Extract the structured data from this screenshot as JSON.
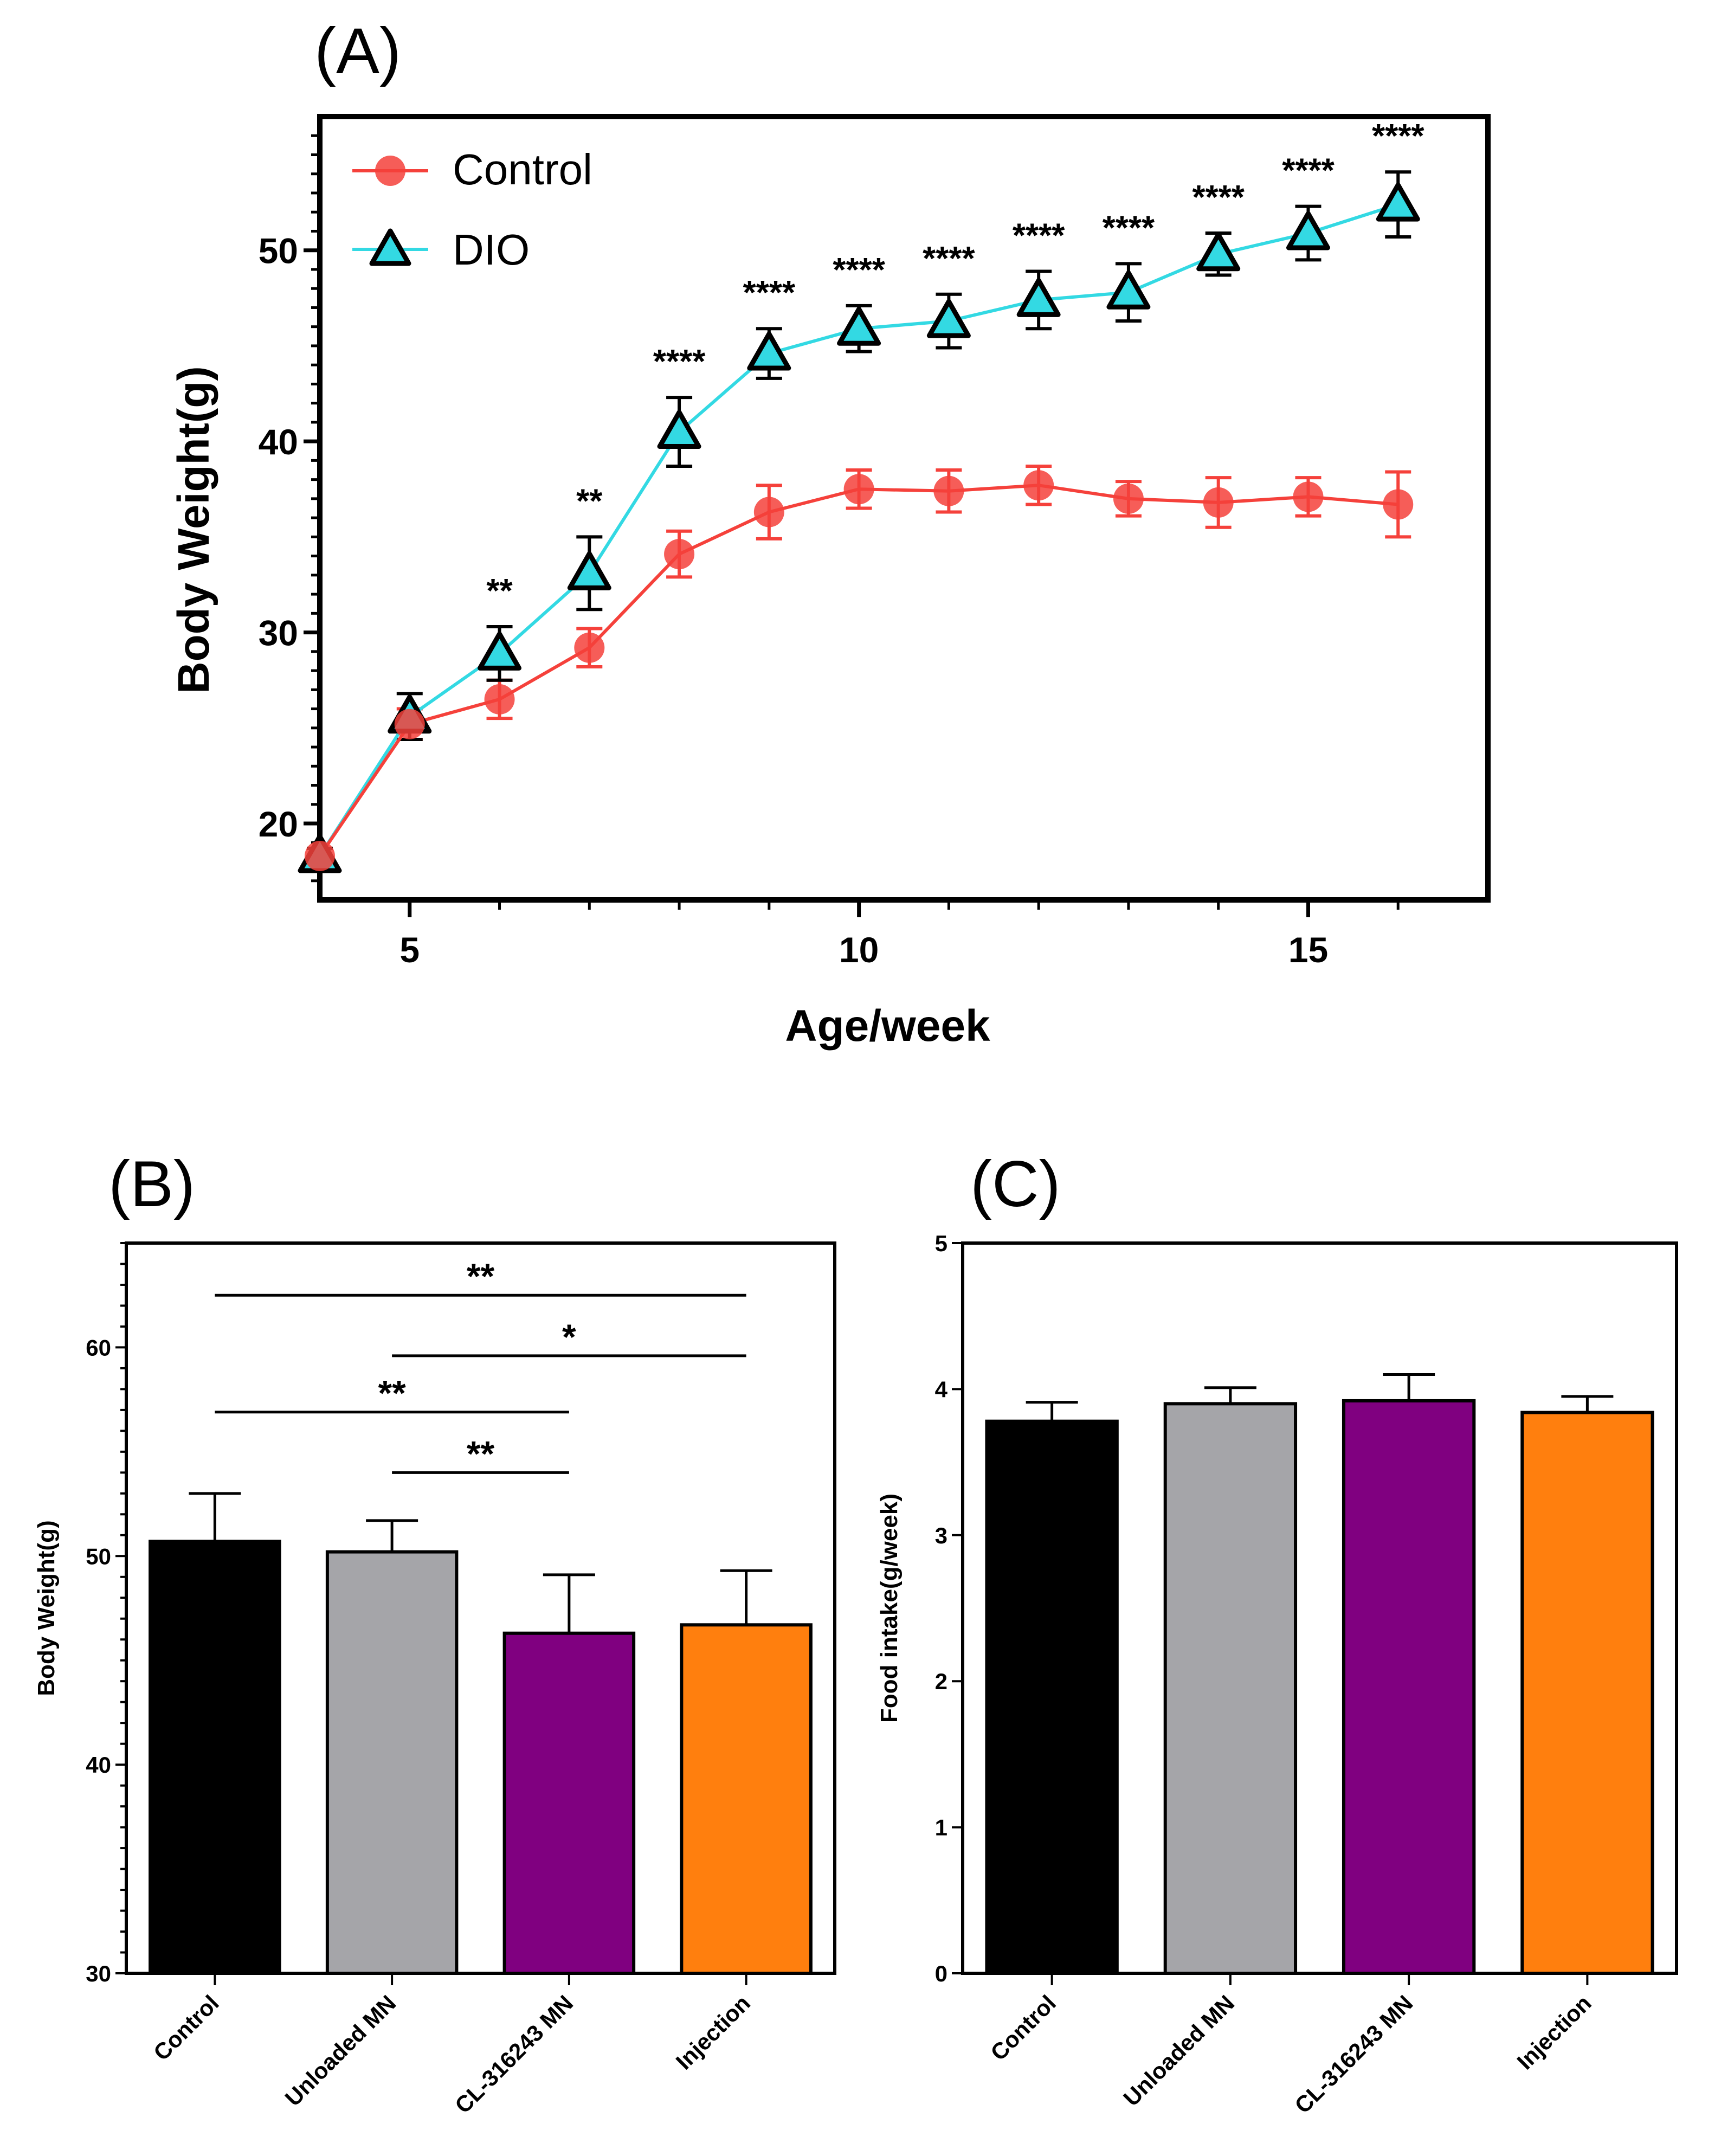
{
  "chart_data": [
    {
      "id": "A",
      "type": "line",
      "panel_label": "(A)",
      "xlabel": "Age/week",
      "ylabel": "Body Weight(g)",
      "xlim": [
        4,
        17
      ],
      "ylim": [
        16,
        57
      ],
      "xticks": [
        5,
        10,
        15
      ],
      "yticks": [
        20,
        30,
        40,
        50
      ],
      "legend_position": "top-left",
      "x": [
        4,
        5,
        6,
        7,
        8,
        9,
        10,
        11,
        12,
        13,
        14,
        15,
        16
      ],
      "series": [
        {
          "name": "Control",
          "color": "#f5413b",
          "marker": "circle",
          "values": [
            18.3,
            25.2,
            26.5,
            29.2,
            34.1,
            36.3,
            37.5,
            37.4,
            37.7,
            37.0,
            36.8,
            37.1,
            36.7
          ],
          "errors": [
            0.4,
            0.8,
            1.0,
            1.0,
            1.2,
            1.4,
            1.0,
            1.1,
            1.0,
            0.9,
            1.3,
            1.0,
            1.7
          ]
        },
        {
          "name": "DIO",
          "color": "#33d9e3",
          "marker": "triangle",
          "values": [
            18.3,
            25.6,
            28.9,
            33.1,
            40.5,
            44.6,
            45.9,
            46.3,
            47.4,
            47.8,
            49.8,
            50.9,
            52.4
          ],
          "errors": [
            0.4,
            1.2,
            1.4,
            1.9,
            1.8,
            1.3,
            1.2,
            1.4,
            1.5,
            1.5,
            1.1,
            1.4,
            1.7
          ]
        }
      ],
      "annotations": [
        {
          "x": 6,
          "text": "**"
        },
        {
          "x": 7,
          "text": "**"
        },
        {
          "x": 8,
          "text": "****"
        },
        {
          "x": 9,
          "text": "****"
        },
        {
          "x": 10,
          "text": "****"
        },
        {
          "x": 11,
          "text": "****"
        },
        {
          "x": 12,
          "text": "****"
        },
        {
          "x": 13,
          "text": "****"
        },
        {
          "x": 14,
          "text": "****"
        },
        {
          "x": 15,
          "text": "****"
        },
        {
          "x": 16,
          "text": "****"
        }
      ]
    },
    {
      "id": "B",
      "type": "bar",
      "panel_label": "(B)",
      "xlabel": "",
      "ylabel": "Body Weight(g)",
      "ylim": [
        30,
        65
      ],
      "yticks": [
        30,
        40,
        50,
        60
      ],
      "categories": [
        "Control",
        "Unloaded MN",
        "CL-316243 MN",
        "Injection"
      ],
      "values": [
        50.7,
        50.2,
        46.3,
        46.7
      ],
      "errors": [
        2.3,
        1.5,
        2.8,
        2.6
      ],
      "colors": [
        "#000000",
        "#a5a5a9",
        "#800080",
        "#ff7f0e"
      ],
      "comparisons": [
        {
          "from": 0,
          "to": 3,
          "y": 62.5,
          "text": "**"
        },
        {
          "from": 1,
          "to": 3,
          "y": 59.6,
          "text": "*"
        },
        {
          "from": 0,
          "to": 2,
          "y": 56.9,
          "text": "**"
        },
        {
          "from": 1,
          "to": 2,
          "y": 54.0,
          "text": "**"
        }
      ]
    },
    {
      "id": "C",
      "type": "bar",
      "panel_label": "(C)",
      "xlabel": "",
      "ylabel": "Food intake(g/week)",
      "ylim": [
        0,
        5
      ],
      "yticks": [
        0,
        1,
        2,
        3,
        4,
        5
      ],
      "categories": [
        "Control",
        "Unloaded MN",
        "CL-316243 MN",
        "Injection"
      ],
      "values": [
        3.78,
        3.9,
        3.92,
        3.84
      ],
      "errors": [
        0.13,
        0.11,
        0.18,
        0.11
      ],
      "colors": [
        "#000000",
        "#a5a5a9",
        "#800080",
        "#ff7f0e"
      ]
    }
  ]
}
